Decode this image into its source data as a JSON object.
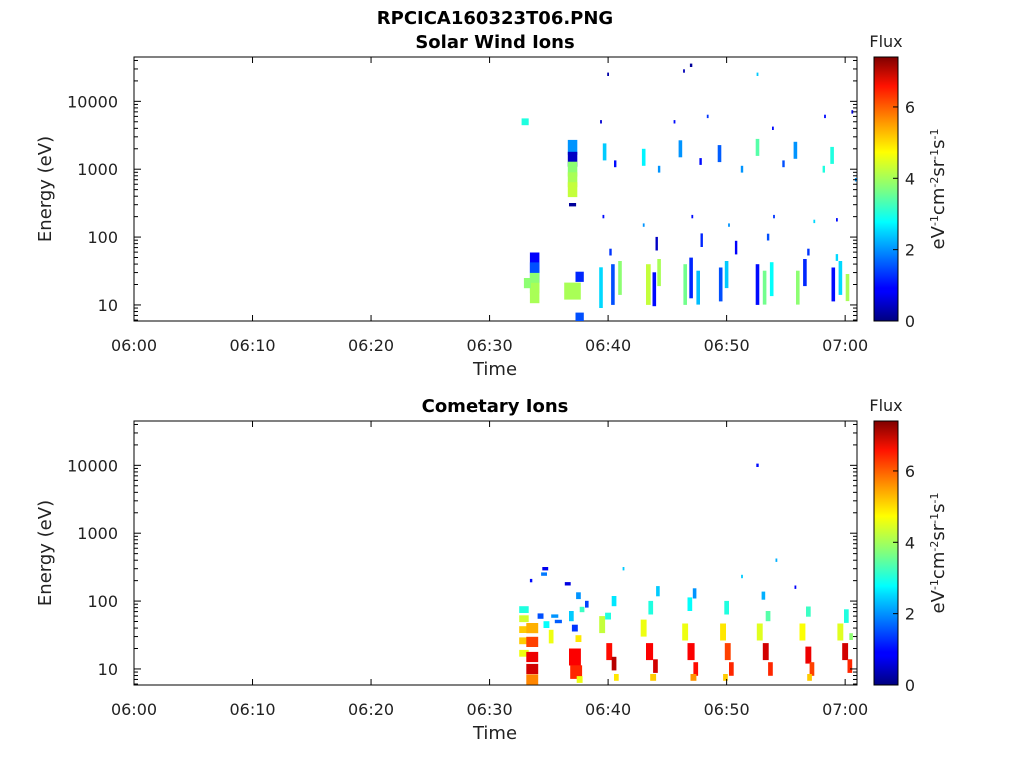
{
  "figure_title": "RPCICA160323T06.PNG",
  "chart_data": [
    {
      "type": "heatmap",
      "title": "Solar Wind Ions",
      "xlabel": "Time",
      "ylabel": "Energy (eV)",
      "x_ticks": [
        "06:00",
        "06:10",
        "06:20",
        "06:30",
        "06:40",
        "06:50",
        "07:00"
      ],
      "x_range_min": [
        0,
        61
      ],
      "y_scale": "log",
      "y_ticks": [
        "10",
        "100",
        "1000",
        "10000"
      ],
      "y_range_eV": [
        5.8,
        45000
      ],
      "colorbar": {
        "label": "Flux",
        "unit": "eV-1cm-2sr-1s-1",
        "ticks": [
          "0",
          "2",
          "4",
          "6"
        ],
        "range": [
          0,
          7.4
        ]
      },
      "cells": [
        [
          33,
          5000,
          3.0,
          0.6,
          0.1
        ],
        [
          33.8,
          42,
          0.9,
          0.8,
          0.3
        ],
        [
          33.8,
          30,
          1.5,
          0.8,
          0.3
        ],
        [
          33.8,
          21,
          3.8,
          0.8,
          0.3
        ],
        [
          33.8,
          15,
          4.0,
          0.8,
          0.3
        ],
        [
          33.2,
          21,
          3.8,
          0.6,
          0.15
        ],
        [
          37,
          2100,
          2.0,
          0.8,
          0.22
        ],
        [
          37,
          1400,
          0.5,
          0.8,
          0.22
        ],
        [
          37,
          1000,
          3.8,
          0.8,
          0.22
        ],
        [
          37,
          700,
          4.0,
          0.8,
          0.22
        ],
        [
          37,
          500,
          4.2,
          0.8,
          0.22
        ],
        [
          37,
          300,
          0.2,
          0.6,
          0.05
        ],
        [
          37,
          16,
          4.0,
          1.4,
          0.25
        ],
        [
          37.6,
          26,
          1.2,
          0.7,
          0.15
        ],
        [
          37.6,
          6.5,
          1.5,
          0.7,
          0.15
        ],
        [
          39.4,
          18,
          2.5,
          0.3,
          0.6
        ],
        [
          40.4,
          20,
          1.5,
          0.3,
          0.6
        ],
        [
          41.0,
          25,
          3.8,
          0.3,
          0.5
        ],
        [
          43.4,
          20,
          4.2,
          0.4,
          0.6
        ],
        [
          43.9,
          17,
          1.0,
          0.3,
          0.5
        ],
        [
          44.3,
          30,
          4.0,
          0.3,
          0.4
        ],
        [
          46.5,
          20,
          3.6,
          0.3,
          0.6
        ],
        [
          47.0,
          25,
          1.2,
          0.3,
          0.6
        ],
        [
          47.6,
          18,
          2.3,
          0.3,
          0.5
        ],
        [
          49.5,
          20,
          1.5,
          0.3,
          0.5
        ],
        [
          50.0,
          28,
          2.4,
          0.3,
          0.4
        ],
        [
          52.6,
          20,
          1.0,
          0.3,
          0.6
        ],
        [
          53.2,
          18,
          3.6,
          0.3,
          0.5
        ],
        [
          53.8,
          24,
          2.8,
          0.3,
          0.5
        ],
        [
          56.0,
          18,
          3.8,
          0.3,
          0.5
        ],
        [
          56.6,
          30,
          1.2,
          0.3,
          0.4
        ],
        [
          59.0,
          20,
          1.0,
          0.3,
          0.5
        ],
        [
          59.6,
          25,
          2.5,
          0.3,
          0.5
        ],
        [
          60.2,
          18,
          4.0,
          0.3,
          0.4
        ],
        [
          39.7,
          1800,
          2.4,
          0.3,
          0.25
        ],
        [
          43.0,
          1500,
          2.7,
          0.3,
          0.25
        ],
        [
          46.1,
          2000,
          2.0,
          0.3,
          0.25
        ],
        [
          49.4,
          1700,
          1.6,
          0.3,
          0.25
        ],
        [
          52.6,
          2100,
          3.4,
          0.3,
          0.25
        ],
        [
          55.8,
          1900,
          2.0,
          0.3,
          0.25
        ],
        [
          58.9,
          1600,
          3.0,
          0.3,
          0.25
        ],
        [
          40.6,
          1200,
          1.0,
          0.2,
          0.1
        ],
        [
          44.3,
          1000,
          2.0,
          0.2,
          0.1
        ],
        [
          47.8,
          1300,
          1.0,
          0.2,
          0.1
        ],
        [
          51.3,
          1000,
          2.0,
          0.2,
          0.1
        ],
        [
          54.8,
          1200,
          1.5,
          0.2,
          0.1
        ],
        [
          58.2,
          1000,
          3.0,
          0.2,
          0.1
        ],
        [
          40.2,
          60,
          1.3,
          0.2,
          0.1
        ],
        [
          44.1,
          80,
          0.5,
          0.2,
          0.2
        ],
        [
          47.9,
          90,
          1.2,
          0.2,
          0.2
        ],
        [
          50.8,
          70,
          0.9,
          0.2,
          0.2
        ],
        [
          53.5,
          100,
          1.5,
          0.2,
          0.1
        ],
        [
          56.9,
          60,
          1.3,
          0.2,
          0.1
        ],
        [
          59.3,
          50,
          2.5,
          0.2,
          0.1
        ],
        [
          40.0,
          25000,
          0.3,
          0.15,
          0.05
        ],
        [
          46.4,
          28000,
          0.4,
          0.15,
          0.05
        ],
        [
          47.0,
          34000,
          0.2,
          0.2,
          0.05
        ],
        [
          52.6,
          25000,
          2.4,
          0.15,
          0.05
        ],
        [
          39.4,
          5000,
          0.6,
          0.15,
          0.05
        ],
        [
          45.6,
          5000,
          1.0,
          0.15,
          0.05
        ],
        [
          48.4,
          6000,
          1.3,
          0.15,
          0.05
        ],
        [
          53.9,
          4000,
          1.0,
          0.15,
          0.05
        ],
        [
          58.3,
          6000,
          1.0,
          0.15,
          0.05
        ],
        [
          60.6,
          7000,
          0.6,
          0.15,
          0.05
        ],
        [
          39.6,
          200,
          1.0,
          0.15,
          0.05
        ],
        [
          43.0,
          150,
          2.0,
          0.15,
          0.05
        ],
        [
          47.1,
          200,
          1.0,
          0.15,
          0.05
        ],
        [
          50.2,
          150,
          2.0,
          0.15,
          0.05
        ],
        [
          54.0,
          200,
          1.3,
          0.15,
          0.05
        ],
        [
          57.4,
          170,
          2.5,
          0.15,
          0.05
        ],
        [
          59.3,
          180,
          1.0,
          0.15,
          0.05
        ],
        [
          60.9,
          700,
          2.0,
          0.15,
          0.05
        ]
      ]
    },
    {
      "type": "heatmap",
      "title": "Cometary Ions",
      "xlabel": "Time",
      "ylabel": "Energy (eV)",
      "x_ticks": [
        "06:00",
        "06:10",
        "06:20",
        "06:30",
        "06:40",
        "06:50",
        "07:00"
      ],
      "x_range_min": [
        0,
        61
      ],
      "y_scale": "log",
      "y_ticks": [
        "10",
        "100",
        "1000",
        "10000"
      ],
      "y_range_eV": [
        5.8,
        45000
      ],
      "colorbar": {
        "label": "Flux",
        "unit": "eV-1cm-2sr-1s-1",
        "ticks": [
          "0",
          "2",
          "4",
          "6"
        ],
        "range": [
          0,
          7.4
        ]
      },
      "cells": [
        [
          32.9,
          75,
          3.0,
          0.8,
          0.1
        ],
        [
          32.9,
          55,
          4.3,
          0.8,
          0.1
        ],
        [
          32.9,
          38,
          5.0,
          0.8,
          0.1
        ],
        [
          32.9,
          26,
          5.0,
          0.8,
          0.1
        ],
        [
          32.9,
          17,
          4.5,
          0.8,
          0.1
        ],
        [
          33.6,
          40,
          5.2,
          1.0,
          0.15
        ],
        [
          33.6,
          25,
          6.0,
          1.0,
          0.15
        ],
        [
          33.6,
          15,
          6.6,
          1.0,
          0.15
        ],
        [
          33.6,
          10,
          6.8,
          1.0,
          0.15
        ],
        [
          33.6,
          7,
          5.5,
          1.0,
          0.15
        ],
        [
          34.3,
          60,
          1.5,
          0.5,
          0.08
        ],
        [
          34.8,
          45,
          2.8,
          0.5,
          0.1
        ],
        [
          34.7,
          300,
          0.8,
          0.5,
          0.05
        ],
        [
          34.6,
          250,
          1.8,
          0.5,
          0.05
        ],
        [
          35.5,
          60,
          2.0,
          0.6,
          0.05
        ],
        [
          35.8,
          50,
          1.6,
          0.6,
          0.05
        ],
        [
          35.2,
          30,
          4.5,
          0.4,
          0.2
        ],
        [
          33.5,
          200,
          1.0,
          0.2,
          0.05
        ],
        [
          36.6,
          180,
          0.7,
          0.5,
          0.05
        ],
        [
          36.9,
          60,
          2.4,
          0.4,
          0.15
        ],
        [
          37.2,
          40,
          1.3,
          0.5,
          0.1
        ],
        [
          37.5,
          28,
          4.8,
          0.5,
          0.1
        ],
        [
          37.2,
          15,
          6.5,
          1.0,
          0.25
        ],
        [
          37.3,
          9,
          6.2,
          1.0,
          0.2
        ],
        [
          37.6,
          7,
          4.5,
          0.5,
          0.1
        ],
        [
          37.5,
          120,
          2.0,
          0.4,
          0.1
        ],
        [
          38.2,
          90,
          1.4,
          0.3,
          0.1
        ],
        [
          37.8,
          75,
          3.2,
          0.4,
          0.08
        ],
        [
          39.5,
          45,
          4.2,
          0.5,
          0.25
        ],
        [
          40.1,
          18,
          6.4,
          0.5,
          0.25
        ],
        [
          40.5,
          12,
          7.0,
          0.4,
          0.2
        ],
        [
          40.0,
          60,
          3.0,
          0.5,
          0.1
        ],
        [
          40.5,
          100,
          2.6,
          0.4,
          0.15
        ],
        [
          40.7,
          7.5,
          4.8,
          0.4,
          0.1
        ],
        [
          43.0,
          40,
          4.5,
          0.5,
          0.25
        ],
        [
          43.5,
          18,
          6.5,
          0.6,
          0.25
        ],
        [
          44.0,
          11,
          6.8,
          0.4,
          0.2
        ],
        [
          43.6,
          80,
          3.0,
          0.4,
          0.2
        ],
        [
          44.2,
          140,
          2.4,
          0.3,
          0.15
        ],
        [
          43.8,
          7.5,
          5.0,
          0.5,
          0.1
        ],
        [
          46.5,
          35,
          4.5,
          0.5,
          0.25
        ],
        [
          47.0,
          18,
          6.5,
          0.6,
          0.25
        ],
        [
          47.4,
          10,
          6.4,
          0.4,
          0.2
        ],
        [
          46.9,
          90,
          2.8,
          0.4,
          0.2
        ],
        [
          47.3,
          130,
          2.0,
          0.3,
          0.15
        ],
        [
          47.2,
          7.5,
          5.4,
          0.5,
          0.1
        ],
        [
          49.7,
          35,
          4.8,
          0.5,
          0.25
        ],
        [
          50.1,
          18,
          6.0,
          0.5,
          0.25
        ],
        [
          50.4,
          10,
          6.2,
          0.4,
          0.2
        ],
        [
          50.0,
          80,
          3.0,
          0.4,
          0.2
        ],
        [
          49.9,
          7.5,
          5.0,
          0.4,
          0.1
        ],
        [
          52.8,
          35,
          4.4,
          0.5,
          0.25
        ],
        [
          53.3,
          18,
          6.8,
          0.5,
          0.25
        ],
        [
          53.7,
          10,
          6.2,
          0.4,
          0.2
        ],
        [
          53.5,
          60,
          3.4,
          0.4,
          0.15
        ],
        [
          53.1,
          120,
          2.2,
          0.3,
          0.12
        ],
        [
          56.4,
          35,
          4.6,
          0.5,
          0.25
        ],
        [
          56.9,
          16,
          6.6,
          0.5,
          0.25
        ],
        [
          57.2,
          10,
          6.0,
          0.4,
          0.2
        ],
        [
          56.9,
          70,
          3.2,
          0.4,
          0.15
        ],
        [
          57.0,
          7.5,
          5.0,
          0.4,
          0.1
        ],
        [
          59.6,
          35,
          4.4,
          0.5,
          0.25
        ],
        [
          60.0,
          18,
          6.8,
          0.5,
          0.25
        ],
        [
          60.4,
          11,
          6.2,
          0.4,
          0.2
        ],
        [
          60.1,
          60,
          3.0,
          0.4,
          0.2
        ],
        [
          60.5,
          30,
          3.8,
          0.3,
          0.1
        ],
        [
          52.6,
          10000,
          1.0,
          0.2,
          0.05
        ],
        [
          51.3,
          230,
          2.4,
          0.15,
          0.05
        ],
        [
          54.2,
          400,
          2.2,
          0.15,
          0.05
        ],
        [
          41.3,
          300,
          2.4,
          0.15,
          0.05
        ],
        [
          55.8,
          160,
          0.9,
          0.15,
          0.05
        ]
      ]
    }
  ]
}
